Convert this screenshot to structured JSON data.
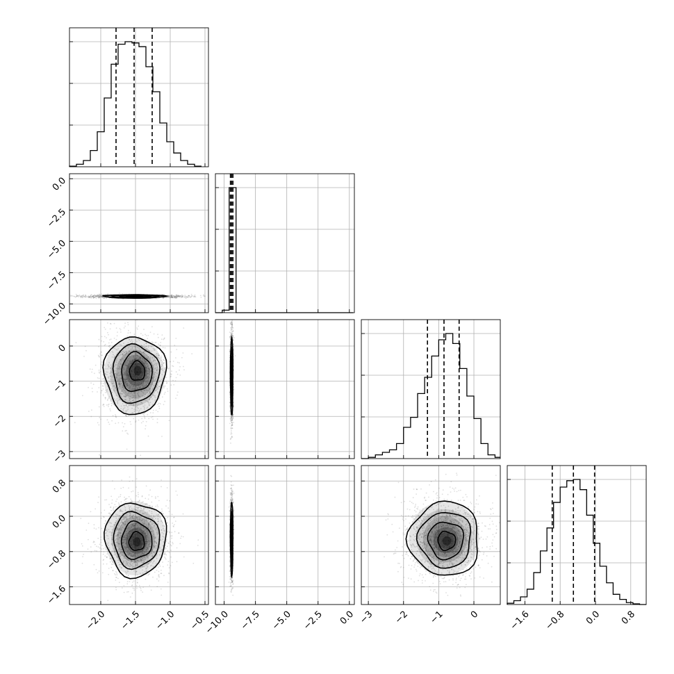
{
  "chart_data": {
    "type": "corner",
    "title": "",
    "parameters": 4,
    "grid": true,
    "parameter_ranges": [
      [
        -2.45,
        -0.45
      ],
      [
        -10.7,
        0.4
      ],
      [
        -3.2,
        0.75
      ],
      [
        -2.0,
        1.15
      ]
    ],
    "ticks": [
      {
        "values": [
          -2.0,
          -1.5,
          -1.0,
          -0.5
        ],
        "labels": [
          "−2.0",
          "−1.5",
          "−1.0",
          "−0.5"
        ]
      },
      {
        "values": [
          -10.0,
          -7.5,
          -5.0,
          -2.5,
          0.0
        ],
        "labels": [
          "−10.0",
          "−7.5",
          "−5.0",
          "−2.5",
          "0.0"
        ]
      },
      {
        "values": [
          -3,
          -2,
          -1,
          0
        ],
        "labels": [
          "−3",
          "−2",
          "−1",
          "0"
        ]
      },
      {
        "values": [
          -1.6,
          -0.8,
          0.0,
          0.8
        ],
        "labels": [
          "−1.6",
          "−0.8",
          "0.0",
          "0.8"
        ]
      }
    ],
    "marginals": [
      {
        "quantiles": [
          -1.78,
          -1.52,
          -1.26
        ],
        "bin_edges": [
          -2.45,
          -2.35,
          -2.25,
          -2.15,
          -2.05,
          -1.95,
          -1.85,
          -1.75,
          -1.65,
          -1.55,
          -1.45,
          -1.35,
          -1.25,
          -1.15,
          -1.05,
          -0.95,
          -0.85,
          -0.75,
          -0.65,
          -0.55
        ],
        "counts": [
          0.5,
          2,
          5,
          13,
          28,
          55,
          82,
          98,
          100,
          99,
          96,
          80,
          60,
          35,
          20,
          11,
          5,
          2,
          0.5
        ]
      },
      {
        "quantiles": [
          -9.5,
          -9.4,
          -9.3
        ],
        "bin_edges": [
          -10.7,
          -10.15,
          -9.6,
          -9.05,
          -8.5,
          -7.95,
          -7.4,
          -6.85,
          -6.3,
          -5.75,
          -5.2,
          -4.65,
          -4.1,
          -3.55,
          -3.0,
          -2.45,
          -1.9,
          -1.35,
          -0.8,
          -0.25,
          0.3
        ],
        "counts": [
          0,
          2,
          100,
          0,
          0,
          0,
          0,
          0,
          0,
          0,
          0,
          0,
          0,
          0,
          0,
          0,
          0,
          0,
          0,
          0
        ]
      },
      {
        "quantiles": [
          -1.32,
          -0.85,
          -0.42
        ],
        "bin_edges": [
          -3.2,
          -3.0,
          -2.8,
          -2.6,
          -2.4,
          -2.2,
          -2.0,
          -1.8,
          -1.6,
          -1.4,
          -1.2,
          -1.0,
          -0.8,
          -0.6,
          -0.4,
          -0.2,
          0.0,
          0.2,
          0.4,
          0.6,
          0.75
        ],
        "counts": [
          0,
          1,
          3,
          5,
          7,
          12,
          25,
          33,
          52,
          65,
          82,
          95,
          100,
          92,
          72,
          50,
          32,
          12,
          3,
          1
        ]
      },
      {
        "quantiles": [
          -0.98,
          -0.5,
          -0.02
        ],
        "bin_edges": [
          -2.0,
          -1.85,
          -1.7,
          -1.55,
          -1.4,
          -1.25,
          -1.1,
          -0.95,
          -0.8,
          -0.65,
          -0.5,
          -0.35,
          -0.2,
          -0.05,
          0.1,
          0.25,
          0.4,
          0.55,
          0.7,
          0.85,
          1.0,
          1.15
        ],
        "counts": [
          1,
          3,
          6,
          12,
          25,
          42,
          60,
          80,
          92,
          97,
          98,
          90,
          70,
          48,
          30,
          17,
          8,
          4,
          1.5,
          0.5,
          0
        ]
      }
    ],
    "joint": [
      {
        "x": 0,
        "y": 1,
        "mean": [
          -1.52,
          -9.4
        ],
        "sd": [
          0.22,
          0.07
        ],
        "sample_sd": [
          0.35,
          0.06
        ],
        "peak_offset": [
          0,
          0
        ]
      },
      {
        "x": 0,
        "y": 2,
        "mean": [
          -1.52,
          -0.85
        ],
        "sd": [
          0.22,
          0.55
        ],
        "sample_sd": [
          0.24,
          0.6
        ],
        "peak_offset": [
          0.05,
          0.15
        ]
      },
      {
        "x": 1,
        "y": 2,
        "mean": [
          -9.4,
          -0.85
        ],
        "sd": [
          0.05,
          0.55
        ],
        "sample_sd": [
          0.06,
          0.6
        ],
        "peak_offset": [
          0,
          0
        ]
      },
      {
        "x": 0,
        "y": 3,
        "mean": [
          -1.5,
          -0.5
        ],
        "sd": [
          0.22,
          0.42
        ],
        "sample_sd": [
          0.24,
          0.45
        ],
        "peak_offset": [
          0.02,
          -0.08
        ]
      },
      {
        "x": 1,
        "y": 3,
        "mean": [
          -9.4,
          -0.5
        ],
        "sd": [
          0.05,
          0.42
        ],
        "sample_sd": [
          0.06,
          0.45
        ],
        "peak_offset": [
          0,
          0
        ]
      },
      {
        "x": 2,
        "y": 3,
        "mean": [
          -0.85,
          -0.5
        ],
        "sd": [
          0.5,
          0.42
        ],
        "sample_sd": [
          0.55,
          0.45
        ],
        "peak_offset": [
          0.08,
          -0.06
        ]
      }
    ],
    "contour_levels_sigma": [
      0.5,
      1.0,
      1.5,
      2.0
    ],
    "colors": {
      "samples": "#6b6b6b",
      "lines": "#000000",
      "grid": "#b0b0b0"
    }
  }
}
